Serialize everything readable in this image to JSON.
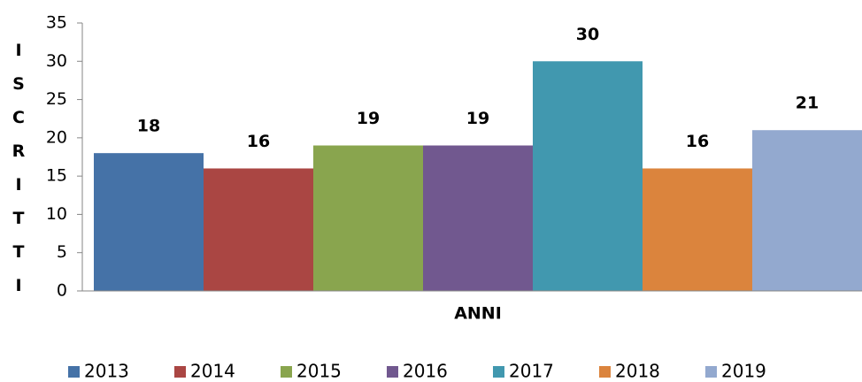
{
  "chart_data": {
    "type": "bar",
    "y_label": "ISCRITTI",
    "x_label": "ANNI",
    "categories": [
      null
    ],
    "series": [
      {
        "name": "2013",
        "color": "#4572a7",
        "values": [
          18
        ]
      },
      {
        "name": "2014",
        "color": "#aa4643",
        "values": [
          16
        ]
      },
      {
        "name": "2015",
        "color": "#89a54e",
        "values": [
          19
        ]
      },
      {
        "name": "2016",
        "color": "#71588f",
        "values": [
          19
        ]
      },
      {
        "name": "2017",
        "color": "#4198af",
        "values": [
          30
        ]
      },
      {
        "name": "2018",
        "color": "#db843d",
        "values": [
          16
        ]
      },
      {
        "name": "2019",
        "color": "#93a9cf",
        "values": [
          21
        ]
      }
    ],
    "ylim": [
      0,
      35
    ],
    "yticks": [
      0,
      5,
      10,
      15,
      20,
      25,
      30,
      35
    ],
    "grid": false,
    "legend": "bottom"
  }
}
